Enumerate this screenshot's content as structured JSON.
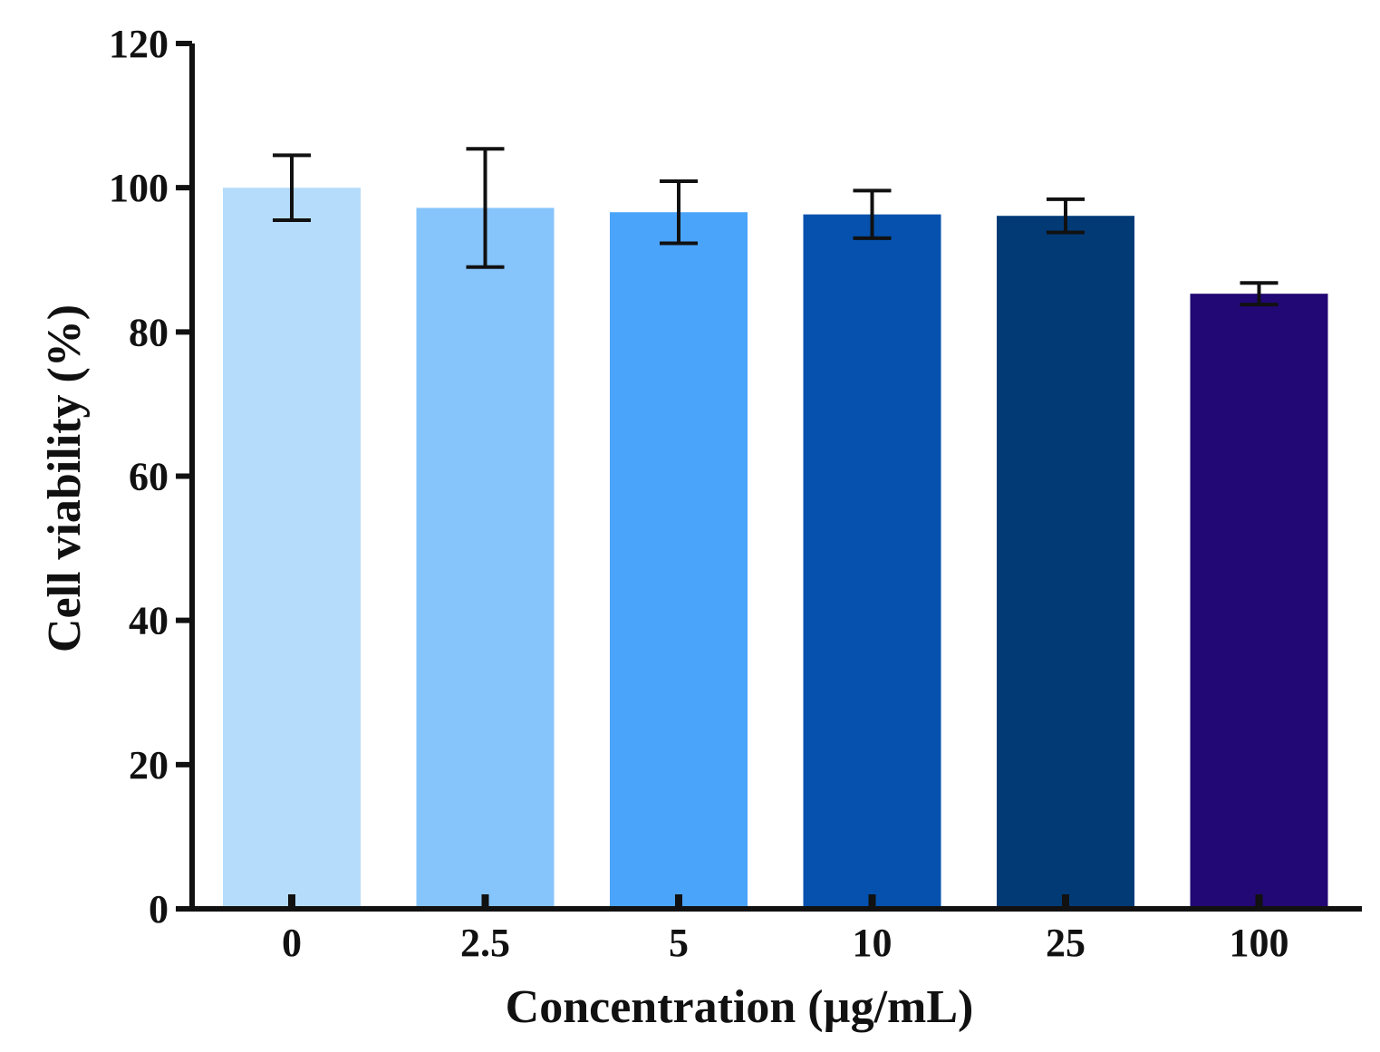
{
  "chart_data": {
    "type": "bar",
    "title": "",
    "xlabel": "Concentration (µg/mL)",
    "ylabel": "Cell viability (%)",
    "categories": [
      "0",
      "2.5",
      "5",
      "10",
      "25",
      "100"
    ],
    "values": [
      100.0,
      97.2,
      96.6,
      96.3,
      96.1,
      85.3
    ],
    "errors": [
      4.5,
      8.2,
      4.3,
      3.3,
      2.3,
      1.5
    ],
    "colors": [
      "#b6dcfb",
      "#86c4fc",
      "#4aa4fa",
      "#0551ad",
      "#023a76",
      "#220874"
    ],
    "ylim": [
      0,
      120
    ],
    "yticks": [
      0,
      20,
      40,
      60,
      80,
      100,
      120
    ],
    "grid": false,
    "legend": "none"
  }
}
